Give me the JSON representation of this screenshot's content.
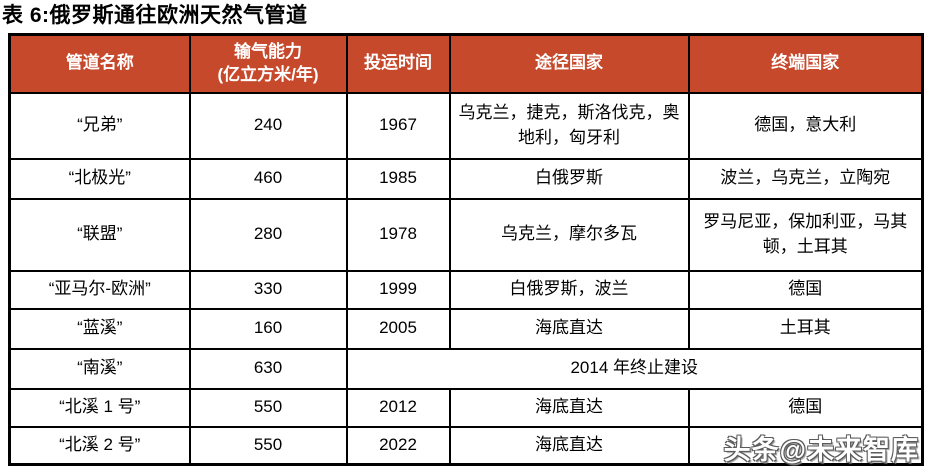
{
  "title": "表 6:俄罗斯通往欧洲天然气管道",
  "table": {
    "headers": [
      "管道名称",
      "输气能力\n(亿立方米/年)",
      "投运时间",
      "途径国家",
      "终端国家"
    ],
    "rows": [
      {
        "name": "“兄弟”",
        "capacity": "240",
        "year": "1967",
        "transit": "乌克兰，捷克，斯洛伐克，奥地利，匈牙利",
        "terminal": "德国，意大利"
      },
      {
        "name": "“北极光”",
        "capacity": "460",
        "year": "1985",
        "transit": "白俄罗斯",
        "terminal": "波兰，乌克兰，立陶宛"
      },
      {
        "name": "“联盟”",
        "capacity": "280",
        "year": "1978",
        "transit": "乌克兰，摩尔多瓦",
        "terminal": "罗马尼亚，保加利亚，马其顿，土耳其"
      },
      {
        "name": "“亚马尔-欧洲”",
        "capacity": "330",
        "year": "1999",
        "transit": "白俄罗斯，波兰",
        "terminal": "德国"
      },
      {
        "name": "“蓝溪”",
        "capacity": "160",
        "year": "2005",
        "transit": "海底直达",
        "terminal": "土耳其"
      },
      {
        "name": "“南溪”",
        "capacity": "630",
        "note": "2014 年终止建设"
      },
      {
        "name": "“北溪 1 号”",
        "capacity": "550",
        "year": "2012",
        "transit": "海底直达",
        "terminal": "德国"
      },
      {
        "name": "“北溪 2 号”",
        "capacity": "550",
        "year": "2022",
        "transit": "海底直达",
        "terminal": ""
      }
    ]
  },
  "watermark": "头条@未来智库",
  "colors": {
    "header_bg": "#C7492C",
    "header_text": "#FFFFFF",
    "border": "#000000",
    "body_bg": "#FFFFFF",
    "title_text": "#000000"
  }
}
